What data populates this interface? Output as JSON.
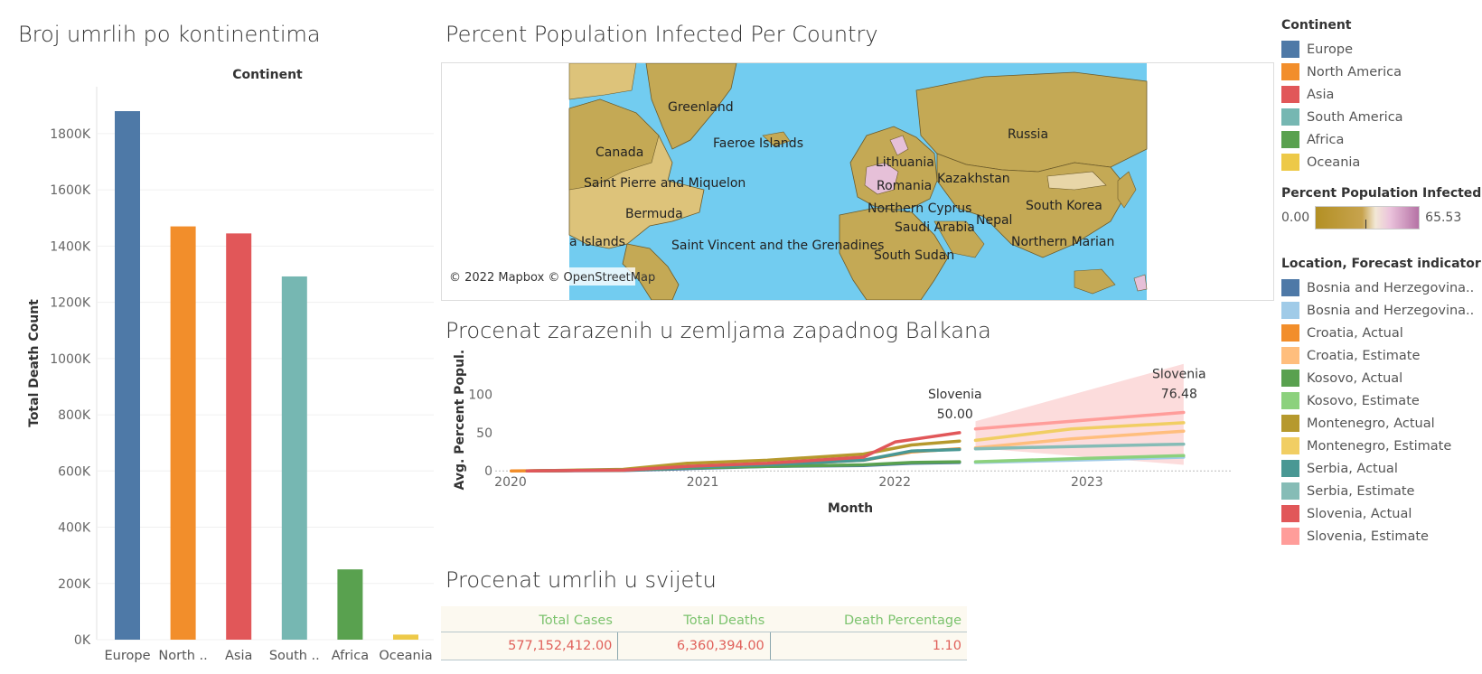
{
  "bar_panel": {
    "title": "Broj umrlih po kontinentima"
  },
  "map_panel": {
    "title": "Percent Population Infected Per Country",
    "attribution": "© 2022 Mapbox © OpenStreetMap",
    "labels": [
      {
        "text": "Greenland",
        "id": "greenland"
      },
      {
        "text": "Canada",
        "id": "canada"
      },
      {
        "text": "Faeroe Islands",
        "id": "faeroe"
      },
      {
        "text": "Russia",
        "id": "russia"
      },
      {
        "text": "Lithuania",
        "id": "lithuania"
      },
      {
        "text": "Kazakhstan",
        "id": "kazakhstan"
      },
      {
        "text": "Saint Pierre and Miquelon",
        "id": "spm"
      },
      {
        "text": "Romania",
        "id": "romania"
      },
      {
        "text": "South Korea",
        "id": "southkorea"
      },
      {
        "text": "Bermuda",
        "id": "bermuda"
      },
      {
        "text": "Northern Cyprus",
        "id": "ncyprus"
      },
      {
        "text": "Saudi Arabia",
        "id": "saudi"
      },
      {
        "text": "Nepal",
        "id": "nepal"
      },
      {
        "text": "a Islands",
        "id": "aislands"
      },
      {
        "text": "Saint Vincent and the Grenadines",
        "id": "svg"
      },
      {
        "text": "Northern Marian",
        "id": "nmarian"
      },
      {
        "text": "South Sudan",
        "id": "ssudan"
      }
    ]
  },
  "line_panel": {
    "title": "Procenat zarazenih u zemljama zapadnog Balkana"
  },
  "table_panel": {
    "title": "Procenat umrlih  u svijetu",
    "headers": [
      "Total Cases",
      "Total Deaths",
      "Death Percentage"
    ],
    "values": [
      "577,152,412.00",
      "6,360,394.00",
      "1.10"
    ]
  },
  "legend": {
    "continent_title": "Continent",
    "continents": [
      {
        "label": "Europe",
        "color": "#4e79a7"
      },
      {
        "label": "North America",
        "color": "#f28e2b"
      },
      {
        "label": "Asia",
        "color": "#e15759"
      },
      {
        "label": "South America",
        "color": "#76b7b2"
      },
      {
        "label": "Africa",
        "color": "#59a14f"
      },
      {
        "label": "Oceania",
        "color": "#edc948"
      }
    ],
    "percent_title": "Percent Population Infected ..",
    "percent_min": "0.00",
    "percent_max": "65.53",
    "location_title": "Location, Forecast indicator",
    "locations": [
      {
        "label": "Bosnia and Herzegovina..",
        "color": "#4e79a7"
      },
      {
        "label": "Bosnia and Herzegovina..",
        "color": "#a0cbe8"
      },
      {
        "label": "Croatia, Actual",
        "color": "#f28e2b"
      },
      {
        "label": "Croatia, Estimate",
        "color": "#ffbe7d"
      },
      {
        "label": "Kosovo, Actual",
        "color": "#59a14f"
      },
      {
        "label": "Kosovo, Estimate",
        "color": "#8cd17d"
      },
      {
        "label": "Montenegro, Actual",
        "color": "#b6992d"
      },
      {
        "label": "Montenegro, Estimate",
        "color": "#f1ce63"
      },
      {
        "label": "Serbia, Actual",
        "color": "#499894"
      },
      {
        "label": "Serbia, Estimate",
        "color": "#86bcb6"
      },
      {
        "label": "Slovenia, Actual",
        "color": "#e15759"
      },
      {
        "label": "Slovenia, Estimate",
        "color": "#ff9d9a"
      }
    ]
  },
  "chart_data": [
    {
      "type": "bar",
      "title": "Broj umrlih po kontinentima",
      "header": "Continent",
      "ylabel": "Total Death Count",
      "categories": [
        "Europe",
        "North ..",
        "Asia",
        "South ..",
        "Africa",
        "Oceania"
      ],
      "values": [
        1880000,
        1470000,
        1445000,
        1292000,
        250000,
        18000
      ],
      "colors": [
        "#4e79a7",
        "#f28e2b",
        "#e15759",
        "#76b7b2",
        "#59a14f",
        "#edc948"
      ],
      "yticks": [
        0,
        200000,
        400000,
        600000,
        800000,
        1000000,
        1200000,
        1400000,
        1600000,
        1800000
      ],
      "ytick_labels": [
        "0K",
        "200K",
        "400K",
        "600K",
        "800K",
        "1000K",
        "1200K",
        "1400K",
        "1600K",
        "1800K"
      ],
      "ylim": [
        0,
        1880000
      ]
    },
    {
      "type": "line",
      "title": "Procenat zarazenih u zemljama zapadnog Balkana",
      "xlabel": "Month",
      "ylabel": "Avg. Percent Popul..",
      "xticks": [
        "2020",
        "2021",
        "2022",
        "2023"
      ],
      "yticks": [
        0,
        50,
        100
      ],
      "xlim": [
        "2020-01",
        "2023-11"
      ],
      "ylim": [
        -8,
        148
      ],
      "annotations": [
        {
          "series": "Slovenia, Actual",
          "name": "Slovenia",
          "value": "50.00",
          "x": "2022-06",
          "y": 50
        },
        {
          "series": "Slovenia, Estimate",
          "name": "Slovenia",
          "value": "76.48",
          "x": "2023-08",
          "y": 76.48
        }
      ],
      "band": {
        "x": [
          "2022-07",
          "2023-08"
        ],
        "low": [
          30,
          8
        ],
        "high": [
          65,
          140
        ],
        "color": "#fbd0d0"
      },
      "series": [
        {
          "name": "Bosnia and Herzegovina, Actual",
          "color": "#4e79a7",
          "x": [
            "2020-03",
            "2020-09",
            "2021-01",
            "2021-06",
            "2021-12",
            "2022-03",
            "2022-06"
          ],
          "y": [
            0,
            0.5,
            3,
            6,
            7,
            10,
            11
          ]
        },
        {
          "name": "Bosnia and Herzegovina, Estimate",
          "color": "#a0cbe8",
          "x": [
            "2022-07",
            "2023-01",
            "2023-08"
          ],
          "y": [
            11,
            14,
            18
          ]
        },
        {
          "name": "Croatia, Actual",
          "color": "#f28e2b",
          "x": [
            "2020-02",
            "2020-09",
            "2021-01",
            "2021-06",
            "2021-12",
            "2022-03",
            "2022-06"
          ],
          "y": [
            0,
            1,
            5,
            8,
            14,
            25,
            29
          ]
        },
        {
          "name": "Croatia, Estimate",
          "color": "#ffbe7d",
          "x": [
            "2022-07",
            "2023-01",
            "2023-08"
          ],
          "y": [
            30,
            42,
            52
          ]
        },
        {
          "name": "Kosovo, Actual",
          "color": "#59a14f",
          "x": [
            "2020-03",
            "2020-09",
            "2021-01",
            "2021-06",
            "2021-12",
            "2022-03",
            "2022-06"
          ],
          "y": [
            0,
            1,
            4,
            6,
            8,
            11,
            12
          ]
        },
        {
          "name": "Kosovo, Estimate",
          "color": "#8cd17d",
          "x": [
            "2022-07",
            "2023-01",
            "2023-08"
          ],
          "y": [
            12,
            16,
            20
          ]
        },
        {
          "name": "Montenegro, Actual",
          "color": "#b6992d",
          "x": [
            "2020-03",
            "2020-09",
            "2021-01",
            "2021-06",
            "2021-12",
            "2022-03",
            "2022-06"
          ],
          "y": [
            0,
            2,
            10,
            14,
            22,
            34,
            39
          ]
        },
        {
          "name": "Montenegro, Estimate",
          "color": "#f1ce63",
          "x": [
            "2022-07",
            "2023-01",
            "2023-08"
          ],
          "y": [
            40,
            55,
            63
          ]
        },
        {
          "name": "Serbia, Actual",
          "color": "#499894",
          "x": [
            "2020-03",
            "2020-09",
            "2021-01",
            "2021-06",
            "2021-12",
            "2022-03",
            "2022-06"
          ],
          "y": [
            0,
            1,
            5,
            8,
            14,
            26,
            28
          ]
        },
        {
          "name": "Serbia, Estimate",
          "color": "#86bcb6",
          "x": [
            "2022-07",
            "2023-01",
            "2023-08"
          ],
          "y": [
            29,
            32,
            35
          ]
        },
        {
          "name": "Slovenia, Actual",
          "color": "#e15759",
          "x": [
            "2020-03",
            "2020-09",
            "2021-01",
            "2021-06",
            "2021-12",
            "2022-02",
            "2022-06"
          ],
          "y": [
            0,
            1,
            6,
            10,
            18,
            38,
            50
          ]
        },
        {
          "name": "Slovenia, Estimate",
          "color": "#ff9d9a",
          "x": [
            "2022-07",
            "2023-01",
            "2023-08"
          ],
          "y": [
            55,
            65,
            76.48
          ]
        }
      ]
    }
  ]
}
